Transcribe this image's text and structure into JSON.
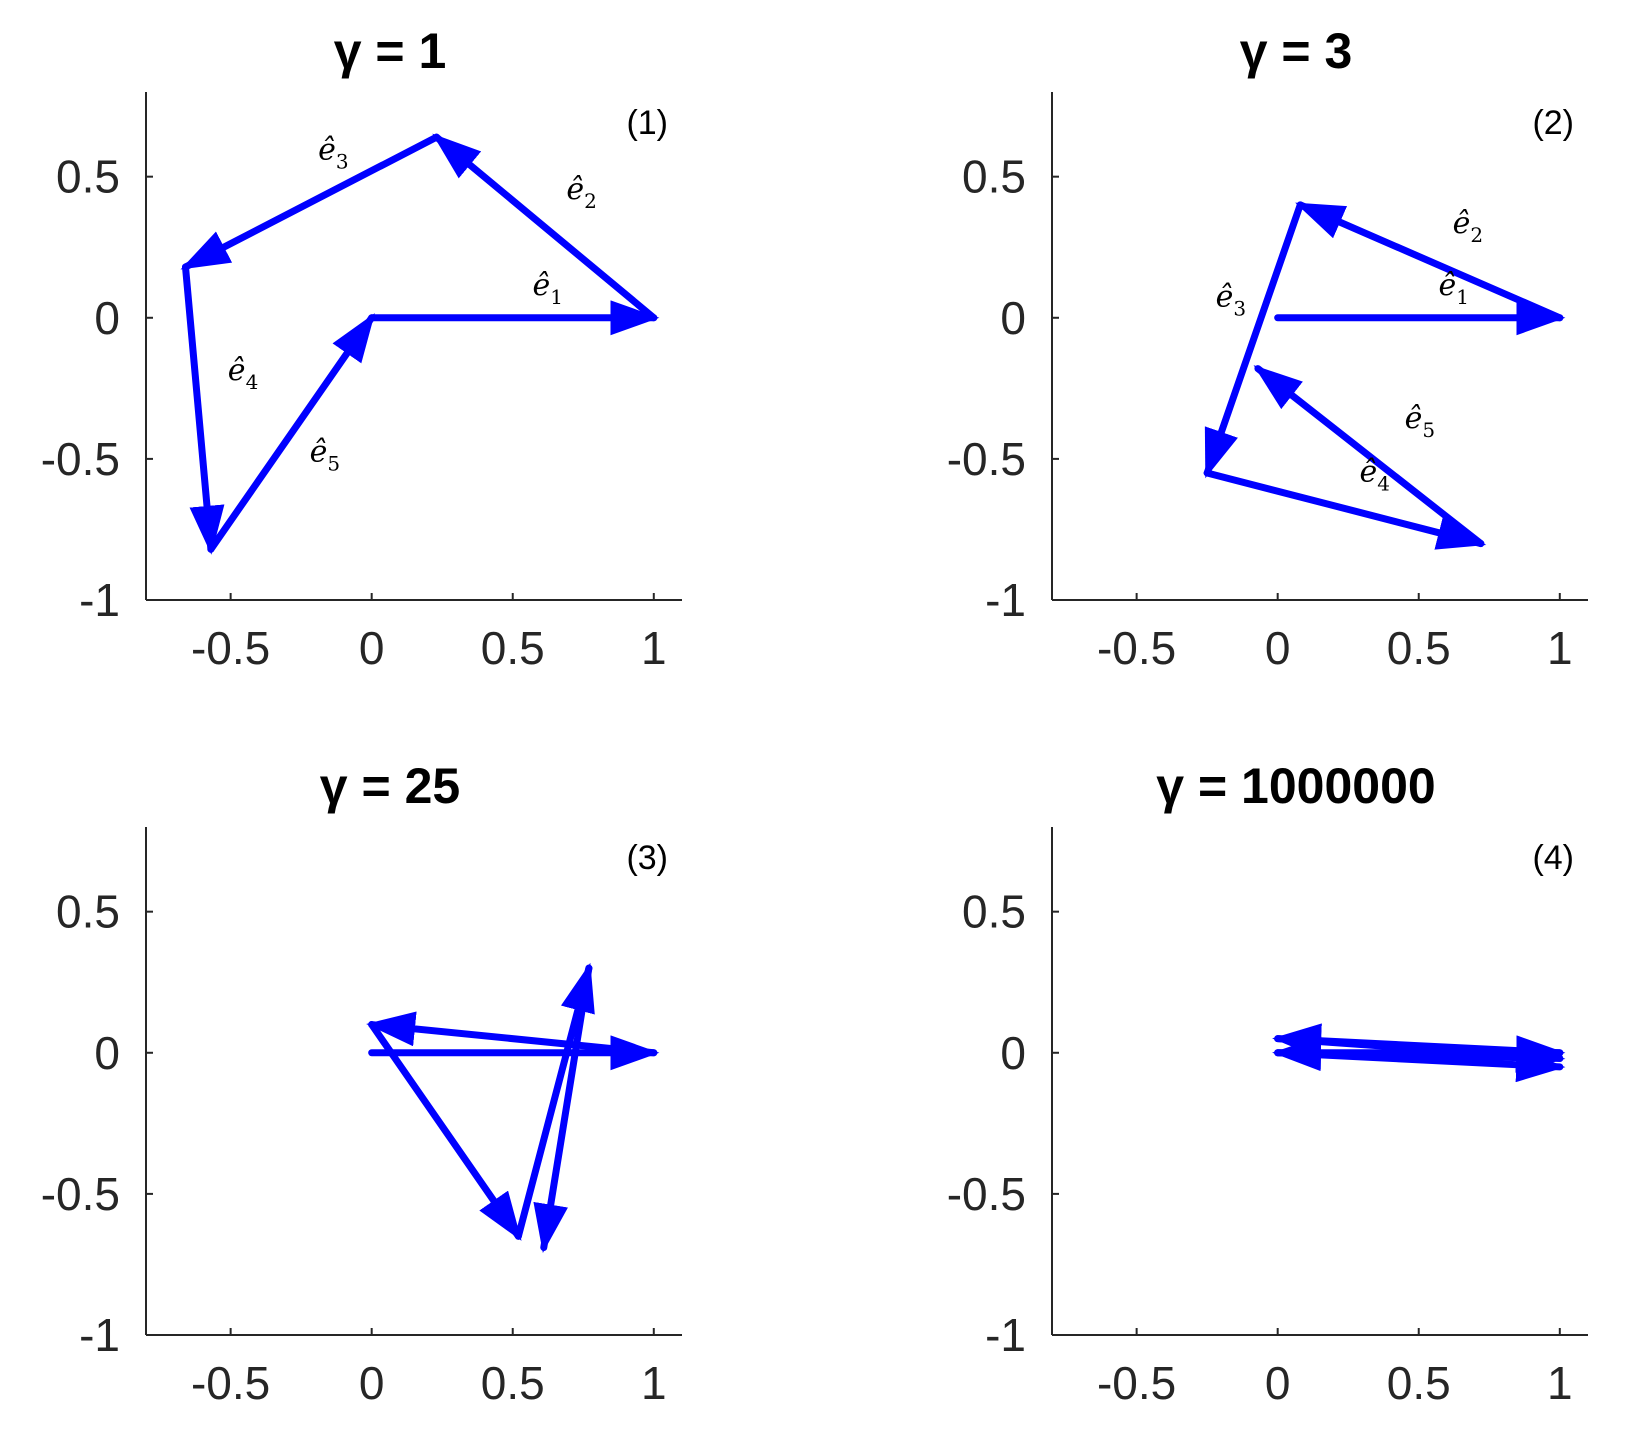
{
  "chart_data": [
    {
      "type": "line",
      "title": "γ = 1",
      "panel_label": "(1)",
      "xlim": [
        -0.8,
        1.1
      ],
      "ylim": [
        -1,
        0.8
      ],
      "x_ticks": [
        -0.5,
        0,
        0.5,
        1
      ],
      "x_tick_labels": [
        "-0.5",
        "0",
        "0.5",
        "1"
      ],
      "y_ticks": [
        -1,
        -0.5,
        0,
        0.5
      ],
      "y_tick_labels": [
        "-1",
        "-0.5",
        "0",
        "0.5"
      ],
      "grid": false,
      "series_color": "#0000ff",
      "vertices": [
        [
          0,
          0
        ],
        [
          1,
          0
        ],
        [
          0.23,
          0.64
        ],
        [
          -0.66,
          0.18
        ],
        [
          -0.57,
          -0.82
        ],
        [
          0,
          0
        ]
      ],
      "vector_labels": [
        {
          "base": "e",
          "sub": "1",
          "x": 0.57,
          "y": 0.08
        },
        {
          "base": "e",
          "sub": "2",
          "x": 0.69,
          "y": 0.42
        },
        {
          "base": "e",
          "sub": "3",
          "x": -0.19,
          "y": 0.56
        },
        {
          "base": "e",
          "sub": "4",
          "x": -0.51,
          "y": -0.22
        },
        {
          "base": "e",
          "sub": "5",
          "x": -0.22,
          "y": -0.51
        }
      ]
    },
    {
      "type": "line",
      "title": "γ = 3",
      "panel_label": "(2)",
      "xlim": [
        -0.8,
        1.1
      ],
      "ylim": [
        -1,
        0.8
      ],
      "x_ticks": [
        -0.5,
        0,
        0.5,
        1
      ],
      "x_tick_labels": [
        "-0.5",
        "0",
        "0.5",
        "1"
      ],
      "y_ticks": [
        -1,
        -0.5,
        0,
        0.5
      ],
      "y_tick_labels": [
        "-1",
        "-0.5",
        "0",
        "0.5"
      ],
      "grid": false,
      "series_color": "#0000ff",
      "vertices": [
        [
          0,
          0
        ],
        [
          1,
          0
        ],
        [
          0.08,
          0.4
        ],
        [
          -0.25,
          -0.55
        ],
        [
          0.72,
          -0.8
        ],
        [
          -0.07,
          -0.18
        ]
      ],
      "vector_labels": [
        {
          "base": "e",
          "sub": "1",
          "x": 0.57,
          "y": 0.08
        },
        {
          "base": "e",
          "sub": "2",
          "x": 0.62,
          "y": 0.3
        },
        {
          "base": "e",
          "sub": "3",
          "x": -0.22,
          "y": 0.04
        },
        {
          "base": "e",
          "sub": "4",
          "x": 0.29,
          "y": -0.58
        },
        {
          "base": "e",
          "sub": "5",
          "x": 0.45,
          "y": -0.39
        }
      ]
    },
    {
      "type": "line",
      "title": "γ = 25",
      "panel_label": "(3)",
      "xlim": [
        -0.8,
        1.1
      ],
      "ylim": [
        -1,
        0.8
      ],
      "x_ticks": [
        -0.5,
        0,
        0.5,
        1
      ],
      "x_tick_labels": [
        "-0.5",
        "0",
        "0.5",
        "1"
      ],
      "y_ticks": [
        -1,
        -0.5,
        0,
        0.5
      ],
      "y_tick_labels": [
        "-1",
        "-0.5",
        "0",
        "0.5"
      ],
      "grid": false,
      "series_color": "#0000ff",
      "vertices": [
        [
          0,
          0
        ],
        [
          1,
          0
        ],
        [
          0.0,
          0.1
        ],
        [
          0.52,
          -0.65
        ],
        [
          0.77,
          0.3
        ],
        [
          0.61,
          -0.69
        ]
      ],
      "vector_labels": []
    },
    {
      "type": "line",
      "title": "γ = 1000000",
      "panel_label": "(4)",
      "xlim": [
        -0.8,
        1.1
      ],
      "ylim": [
        -1,
        0.8
      ],
      "x_ticks": [
        -0.5,
        0,
        0.5,
        1
      ],
      "x_tick_labels": [
        "-0.5",
        "0",
        "0.5",
        "1"
      ],
      "y_ticks": [
        -1,
        -0.5,
        0,
        0.5
      ],
      "y_tick_labels": [
        "-1",
        "-0.5",
        "0",
        "0.5"
      ],
      "grid": false,
      "series_color": "#0000ff",
      "vertices": [
        [
          0,
          0
        ],
        [
          1,
          0
        ],
        [
          0.0,
          0.05
        ],
        [
          1.0,
          -0.02
        ],
        [
          0.0,
          0.0
        ],
        [
          1.0,
          -0.05
        ]
      ],
      "vector_labels": []
    }
  ]
}
